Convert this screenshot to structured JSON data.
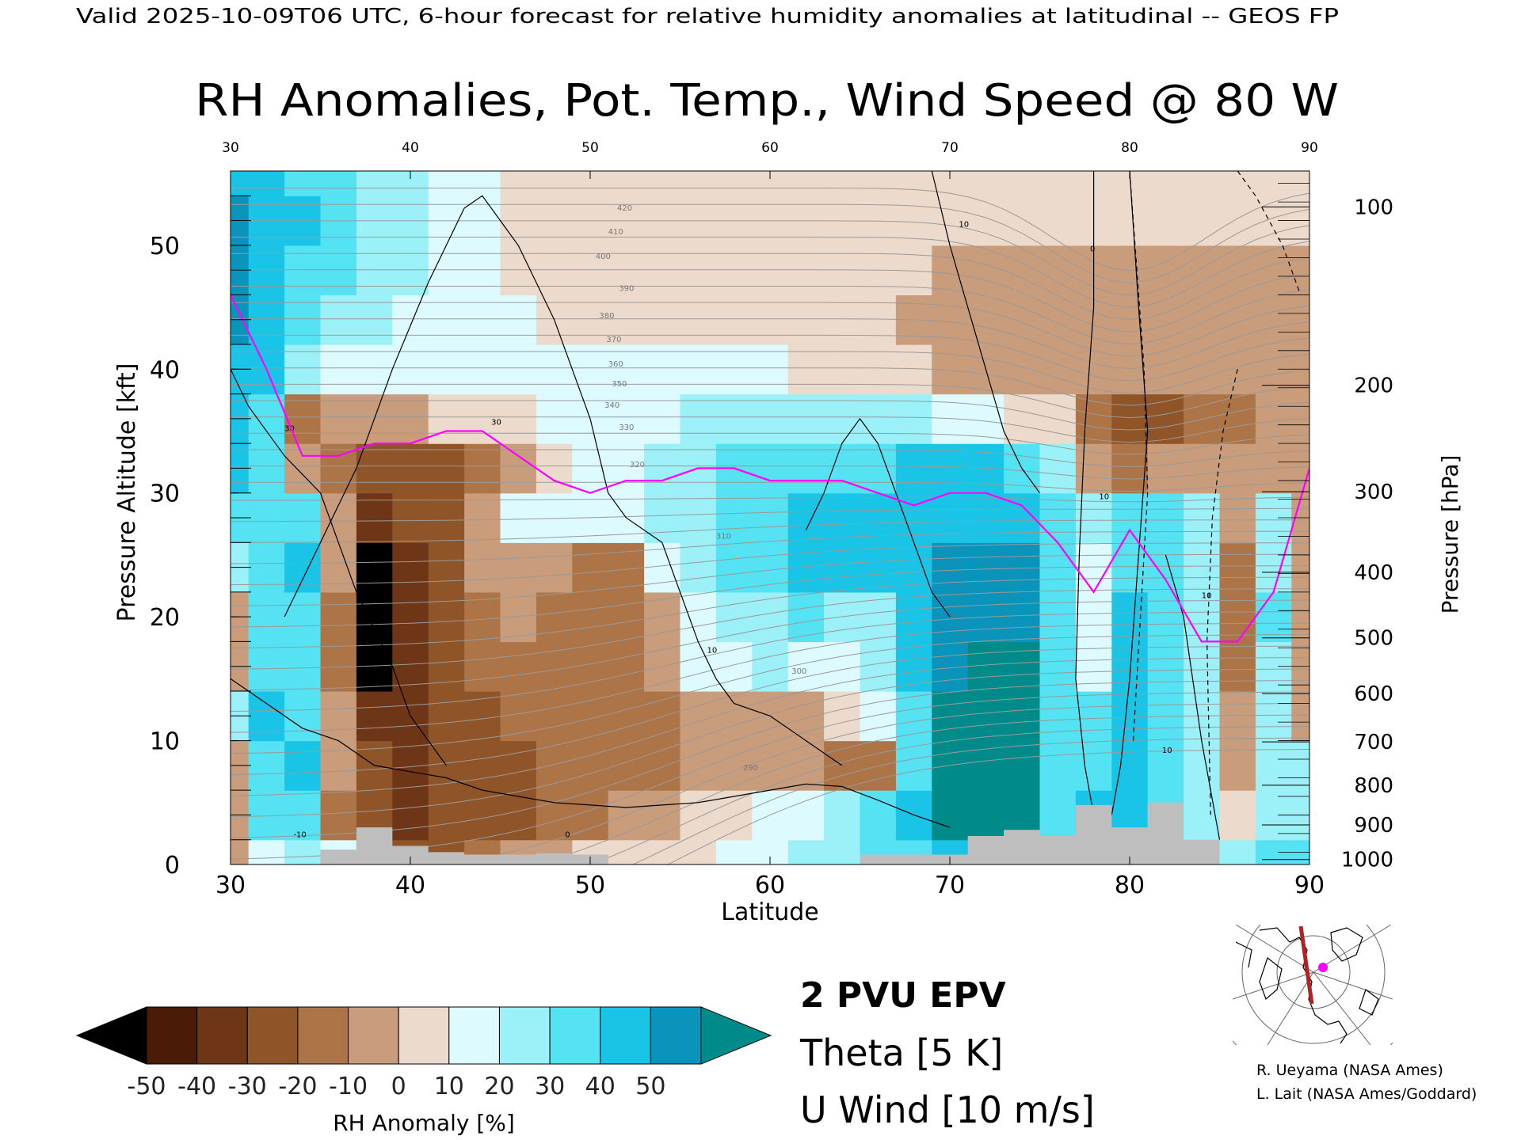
{
  "header": {
    "valid_line": "Valid 2025-10-09T06 UTC, 6-hour forecast for relative humidity anomalies at latitudinal -- GEOS FP"
  },
  "chart_data": {
    "type": "heatmap",
    "title": "RH Anomalies, Pot. Temp., Wind Speed @ 80 W",
    "xlabel": "Latitude",
    "ylabel": "Pressure Altitude [kft]",
    "y2label": "Pressure [hPa]",
    "xlim": [
      30,
      90
    ],
    "ylim": [
      0,
      56
    ],
    "x_ticks": [
      "30",
      "40",
      "50",
      "60",
      "70",
      "80",
      "90"
    ],
    "x_top_ticks": [
      "30",
      "40",
      "50",
      "60",
      "70",
      "80",
      "90"
    ],
    "y_ticks": [
      "0",
      "10",
      "20",
      "30",
      "40",
      "50"
    ],
    "pressure_ticks": [
      {
        "label": "100",
        "alt_kft": 53.1
      },
      {
        "label": "200",
        "alt_kft": 38.7
      },
      {
        "label": "300",
        "alt_kft": 30.1
      },
      {
        "label": "400",
        "alt_kft": 23.6
      },
      {
        "label": "500",
        "alt_kft": 18.3
      },
      {
        "label": "600",
        "alt_kft": 13.8
      },
      {
        "label": "700",
        "alt_kft": 9.9
      },
      {
        "label": "800",
        "alt_kft": 6.4
      },
      {
        "label": "900",
        "alt_kft": 3.2
      },
      {
        "label": "1000",
        "alt_kft": 0.4
      }
    ],
    "colorbar": {
      "label": "RH Anomaly [%]",
      "ticks": [
        "-50",
        "-40",
        "-30",
        "-20",
        "-10",
        "0",
        "10",
        "20",
        "30",
        "40",
        "50"
      ],
      "colors": [
        "#4a1c08",
        "#6e3616",
        "#8f5428",
        "#ad7448",
        "#c99c7c",
        "#ecdacc",
        "#ddfbff",
        "#9cf0f8",
        "#55e2f2",
        "#1ac4e6",
        "#0a94bc"
      ],
      "under_color": "#000000",
      "over_color": "#008b8b"
    },
    "legend": [
      {
        "label": "2 PVU EPV",
        "color": "#ff00ff"
      },
      {
        "label": "Theta [5 K]",
        "color": "#aaaaaa"
      },
      {
        "label": "U Wind [10 m/s]",
        "color": "#000000"
      }
    ],
    "theta_labels": [
      {
        "text": "420",
        "lat": 51.5,
        "alt": 52.8
      },
      {
        "text": "410",
        "lat": 51.0,
        "alt": 50.9
      },
      {
        "text": "400",
        "lat": 50.3,
        "alt": 48.9
      },
      {
        "text": "390",
        "lat": 51.6,
        "alt": 46.3
      },
      {
        "text": "380",
        "lat": 50.5,
        "alt": 44.1
      },
      {
        "text": "370",
        "lat": 50.9,
        "alt": 42.2
      },
      {
        "text": "360",
        "lat": 51.0,
        "alt": 40.2
      },
      {
        "text": "350",
        "lat": 51.2,
        "alt": 38.6
      },
      {
        "text": "340",
        "lat": 50.8,
        "alt": 36.9
      },
      {
        "text": "330",
        "lat": 51.6,
        "alt": 35.1
      },
      {
        "text": "320",
        "lat": 52.2,
        "alt": 32.1
      },
      {
        "text": "310",
        "lat": 57.0,
        "alt": 26.3
      },
      {
        "text": "300",
        "lat": 61.2,
        "alt": 15.4
      },
      {
        "text": "290",
        "lat": 58.5,
        "alt": 7.6
      }
    ],
    "wind_labels": [
      {
        "text": "-10",
        "lat": 33.5,
        "alt": 2.2
      },
      {
        "text": "0",
        "lat": 48.6,
        "alt": 2.2
      },
      {
        "text": "10",
        "lat": 56.5,
        "alt": 17.1
      },
      {
        "text": "30",
        "lat": 33.0,
        "alt": 35.0
      },
      {
        "text": "30",
        "lat": 44.5,
        "alt": 35.5
      },
      {
        "text": "10",
        "lat": 70.5,
        "alt": 51.5
      },
      {
        "text": "0",
        "lat": 77.8,
        "alt": 49.5
      },
      {
        "text": "10",
        "lat": 78.3,
        "alt": 29.5
      },
      {
        "text": "10",
        "lat": 81.8,
        "alt": 9.0
      },
      {
        "text": "10",
        "lat": 84.0,
        "alt": 21.5
      }
    ],
    "terrain_color": "#bebebe",
    "sections": {
      "lat": [
        30,
        32,
        34,
        36,
        38,
        40,
        42,
        44,
        46,
        48,
        50,
        52,
        54,
        56,
        58,
        60,
        62,
        64,
        66,
        68,
        70,
        72,
        74,
        76,
        78,
        80,
        82,
        84,
        86,
        88,
        90
      ],
      "alt": [
        0,
        4,
        8,
        12,
        16,
        20,
        24,
        28,
        32,
        36,
        40,
        44,
        48,
        52,
        56
      ],
      "rh_anomaly": [
        [
          -10,
          8,
          15,
          5,
          -25,
          -30,
          -30,
          -20,
          -10,
          -10,
          -5,
          0,
          0,
          0,
          5,
          10,
          15,
          20,
          25,
          30,
          35,
          40,
          40,
          20,
          30,
          30,
          20,
          20,
          20,
          30,
          25
        ],
        [
          -10,
          30,
          30,
          -20,
          -35,
          -40,
          -35,
          -35,
          -30,
          -25,
          -20,
          -15,
          -10,
          -5,
          0,
          5,
          10,
          20,
          30,
          40,
          50,
          60,
          60,
          30,
          40,
          40,
          30,
          20,
          -5,
          20,
          20
        ],
        [
          -15,
          30,
          35,
          -15,
          -35,
          -40,
          -35,
          -30,
          -30,
          -25,
          -25,
          -25,
          -20,
          -15,
          -10,
          -10,
          -15,
          -25,
          -20,
          25,
          50,
          60,
          60,
          30,
          30,
          35,
          30,
          20,
          -10,
          20,
          20
        ],
        [
          20,
          35,
          30,
          -10,
          -40,
          -40,
          -30,
          -30,
          -25,
          -25,
          -25,
          -25,
          -20,
          -15,
          -10,
          -10,
          -10,
          -5,
          10,
          30,
          50,
          60,
          60,
          30,
          30,
          35,
          30,
          20,
          -10,
          20,
          -10
        ],
        [
          -15,
          30,
          30,
          -20,
          -50,
          -45,
          -35,
          -25,
          -20,
          -20,
          -25,
          -25,
          -10,
          5,
          10,
          15,
          10,
          10,
          15,
          35,
          45,
          50,
          50,
          30,
          10,
          40,
          30,
          20,
          -20,
          20,
          -10
        ],
        [
          -15,
          30,
          30,
          -20,
          -50,
          -45,
          -30,
          -20,
          -15,
          -20,
          -25,
          -25,
          -10,
          10,
          20,
          20,
          25,
          20,
          15,
          35,
          45,
          45,
          45,
          30,
          5,
          35,
          30,
          15,
          -20,
          25,
          -10
        ],
        [
          20,
          30,
          35,
          -15,
          -50,
          -40,
          -30,
          -15,
          -10,
          -15,
          -25,
          -20,
          5,
          15,
          25,
          30,
          35,
          35,
          35,
          40,
          45,
          45,
          45,
          30,
          10,
          30,
          25,
          15,
          -20,
          20,
          -10
        ],
        [
          25,
          30,
          30,
          -10,
          -40,
          -35,
          -30,
          -15,
          5,
          10,
          10,
          5,
          15,
          20,
          25,
          30,
          35,
          35,
          35,
          40,
          40,
          40,
          40,
          25,
          15,
          30,
          25,
          20,
          -15,
          20,
          -15
        ],
        [
          35,
          30,
          -10,
          -25,
          -30,
          -30,
          -30,
          -25,
          -15,
          -5,
          5,
          10,
          15,
          20,
          25,
          25,
          30,
          30,
          30,
          35,
          35,
          35,
          30,
          20,
          -15,
          -25,
          -15,
          -10,
          -10,
          -10,
          -15
        ],
        [
          40,
          30,
          -20,
          -15,
          -10,
          -10,
          -5,
          -5,
          0,
          5,
          8,
          10,
          12,
          15,
          15,
          18,
          20,
          20,
          20,
          15,
          10,
          5,
          0,
          -5,
          -25,
          -30,
          -30,
          -25,
          -20,
          -15,
          -10
        ],
        [
          40,
          35,
          20,
          12,
          10,
          8,
          5,
          5,
          5,
          5,
          5,
          5,
          5,
          5,
          5,
          5,
          2,
          0,
          -2,
          -5,
          -8,
          -10,
          -10,
          -12,
          -12,
          -12,
          -12,
          -12,
          -10,
          -10,
          -8
        ],
        [
          45,
          40,
          30,
          20,
          15,
          10,
          8,
          5,
          5,
          3,
          3,
          2,
          1,
          0,
          0,
          -2,
          -3,
          -5,
          -5,
          -7,
          -8,
          -8,
          -8,
          -8,
          -8,
          -8,
          -8,
          -8,
          -8,
          -8,
          -8
        ],
        [
          45,
          40,
          30,
          25,
          20,
          15,
          10,
          5,
          3,
          2,
          1,
          0,
          0,
          -1,
          -2,
          -3,
          -4,
          -5,
          -5,
          -5,
          -6,
          -6,
          -6,
          -6,
          -6,
          -6,
          -6,
          -6,
          -6,
          -6,
          -6
        ],
        [
          45,
          40,
          35,
          25,
          20,
          15,
          10,
          5,
          3,
          2,
          1,
          0,
          0,
          -1,
          -2,
          -2,
          -3,
          -4,
          -4,
          -4,
          -5,
          -5,
          -5,
          -5,
          -5,
          -5,
          -5,
          -5,
          -5,
          -5,
          -5
        ],
        [
          40,
          35,
          30,
          25,
          20,
          15,
          10,
          5,
          3,
          2,
          1,
          0,
          0,
          -1,
          -1,
          -2,
          -2,
          -3,
          -3,
          -3,
          -4,
          -4,
          -4,
          -4,
          -4,
          -4,
          -4,
          -4,
          -4,
          -4,
          -4
        ]
      ],
      "pvu2_alt_kft": [
        46,
        40,
        33,
        33,
        34,
        34,
        35,
        35,
        33,
        31,
        30,
        31,
        31,
        32,
        32,
        31,
        31,
        31,
        30,
        29,
        30,
        30,
        29,
        26,
        22,
        27,
        23,
        18,
        18,
        22,
        32
      ],
      "terrain_alt_kft": [
        0,
        0,
        0,
        1.2,
        3.0,
        1.5,
        1.0,
        0.8,
        0.8,
        0.9,
        0.8,
        0,
        0,
        0,
        0,
        0,
        0,
        0,
        0.8,
        0.8,
        0.8,
        2.3,
        2.8,
        2.3,
        4.8,
        3.0,
        5.0,
        2.0,
        0,
        0,
        0
      ]
    }
  },
  "credits": [
    "R. Ueyama (NASA Ames)",
    "L. Lait (NASA Ames/Goddard)"
  ],
  "inset_map": {
    "center_lon": "80 W",
    "section_color": "#b22222",
    "marker_color": "#ff00ff"
  }
}
